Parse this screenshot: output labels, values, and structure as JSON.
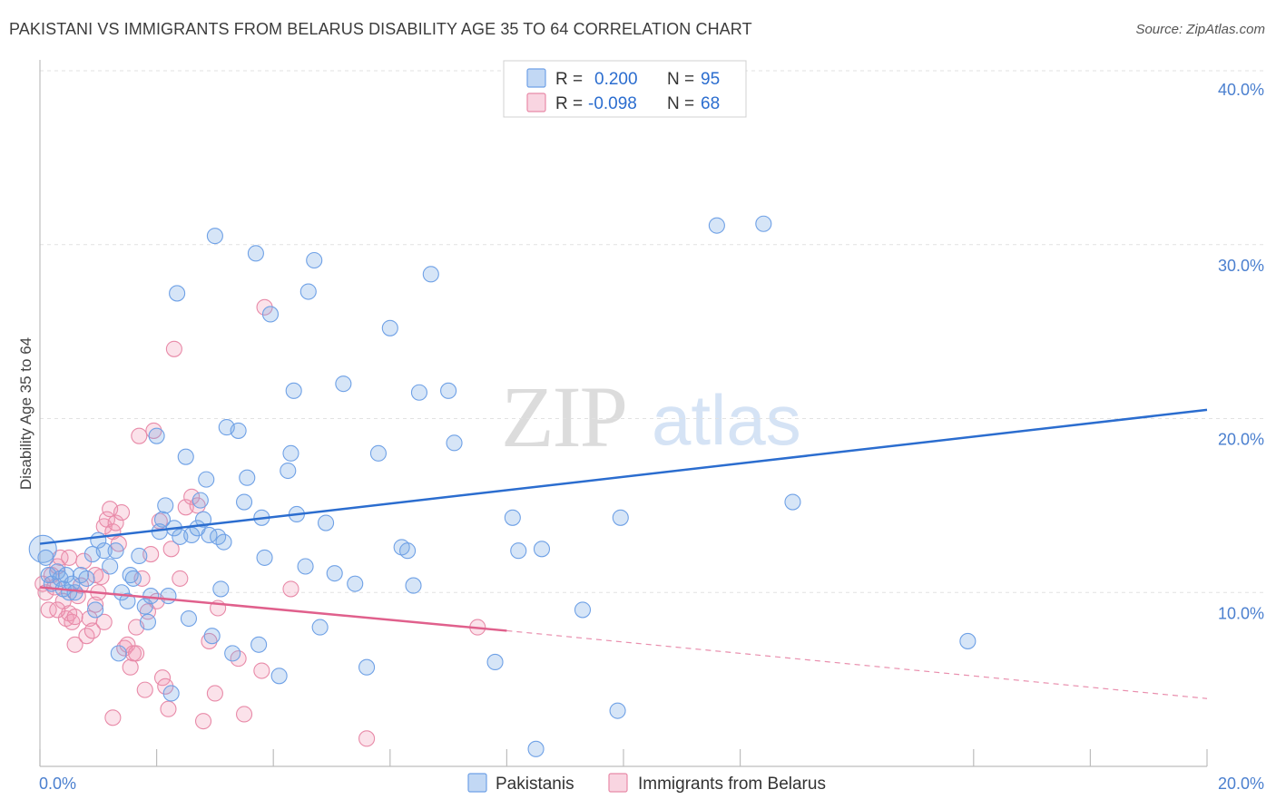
{
  "header": {
    "title": "PAKISTANI VS IMMIGRANTS FROM BELARUS DISABILITY AGE 35 TO 64 CORRELATION CHART",
    "source": "Source: ZipAtlas.com"
  },
  "watermark": {
    "zip": "ZIP",
    "atlas": "atlas"
  },
  "legend": {
    "rows": [
      {
        "r_label": "R =",
        "r_value": "0.200",
        "n_label": "N =",
        "n_value": "95"
      },
      {
        "r_label": "R =",
        "r_value": "-0.098",
        "n_label": "N =",
        "n_value": "68"
      }
    ]
  },
  "bottom_legend": [
    "Pakistanis",
    "Immigrants from Belarus"
  ],
  "colors": {
    "blue": "#6fa1e6",
    "blue_fill": "rgba(120,168,230,0.30)",
    "blue_line": "#2b6dcf",
    "pink": "#e88aa8",
    "pink_fill": "rgba(240,150,180,0.28)",
    "pink_line": "#e0608c",
    "tick_text": "#4a7fcf"
  },
  "chart_data": {
    "type": "scatter",
    "title": "PAKISTANI VS IMMIGRANTS FROM BELARUS DISABILITY AGE 35 TO 64 CORRELATION CHART",
    "xlabel": "",
    "ylabel": "Disability Age 35 to 64",
    "xlim": [
      0,
      20
    ],
    "ylim": [
      0,
      40
    ],
    "x_tick_labels": [
      "0.0%",
      "20.0%"
    ],
    "y_ticks": [
      10,
      20,
      30,
      40
    ],
    "y_tick_labels": [
      "10.0%",
      "20.0%",
      "30.0%",
      "40.0%"
    ],
    "grid": true,
    "legend_position": "top-center",
    "series": [
      {
        "name": "Pakistanis",
        "r": 0.2,
        "n": 95,
        "trend": {
          "x0": 0,
          "y0": 12.8,
          "x1": 20,
          "y1": 20.5,
          "style": "solid"
        },
        "points": [
          [
            0.05,
            12.5
          ],
          [
            0.1,
            12.0
          ],
          [
            0.15,
            11.0
          ],
          [
            0.2,
            10.5
          ],
          [
            0.3,
            11.2
          ],
          [
            0.35,
            10.8
          ],
          [
            0.4,
            10.2
          ],
          [
            0.45,
            11.0
          ],
          [
            0.5,
            10.0
          ],
          [
            0.55,
            10.5
          ],
          [
            0.6,
            10.0
          ],
          [
            0.7,
            11.0
          ],
          [
            0.8,
            10.8
          ],
          [
            0.9,
            12.2
          ],
          [
            1.0,
            13.0
          ],
          [
            1.1,
            12.4
          ],
          [
            1.2,
            11.5
          ],
          [
            1.3,
            12.4
          ],
          [
            1.4,
            10.0
          ],
          [
            1.5,
            9.5
          ],
          [
            1.55,
            11.0
          ],
          [
            1.6,
            10.8
          ],
          [
            1.7,
            12.1
          ],
          [
            1.8,
            9.2
          ],
          [
            1.85,
            8.3
          ],
          [
            1.9,
            9.8
          ],
          [
            2.0,
            19.0
          ],
          [
            2.05,
            13.5
          ],
          [
            2.1,
            14.2
          ],
          [
            2.15,
            15.0
          ],
          [
            2.2,
            9.8
          ],
          [
            2.3,
            13.7
          ],
          [
            2.35,
            27.2
          ],
          [
            2.4,
            13.2
          ],
          [
            2.5,
            17.8
          ],
          [
            2.55,
            8.5
          ],
          [
            2.6,
            13.3
          ],
          [
            2.7,
            13.7
          ],
          [
            2.75,
            15.3
          ],
          [
            2.8,
            14.2
          ],
          [
            2.85,
            16.5
          ],
          [
            2.9,
            13.3
          ],
          [
            3.0,
            30.5
          ],
          [
            3.05,
            13.2
          ],
          [
            3.1,
            10.2
          ],
          [
            3.15,
            12.9
          ],
          [
            3.2,
            19.5
          ],
          [
            3.3,
            6.5
          ],
          [
            3.4,
            19.3
          ],
          [
            3.5,
            15.2
          ],
          [
            3.55,
            16.6
          ],
          [
            3.7,
            29.5
          ],
          [
            3.75,
            7.0
          ],
          [
            3.8,
            14.3
          ],
          [
            3.85,
            12.0
          ],
          [
            3.95,
            26.0
          ],
          [
            4.1,
            5.2
          ],
          [
            4.25,
            17.0
          ],
          [
            4.3,
            18.0
          ],
          [
            4.35,
            21.6
          ],
          [
            4.4,
            14.5
          ],
          [
            4.55,
            11.5
          ],
          [
            4.6,
            27.3
          ],
          [
            4.7,
            29.1
          ],
          [
            4.9,
            14.0
          ],
          [
            5.05,
            11.1
          ],
          [
            5.2,
            22.0
          ],
          [
            5.4,
            10.5
          ],
          [
            5.6,
            5.7
          ],
          [
            5.8,
            18.0
          ],
          [
            6.0,
            25.2
          ],
          [
            6.2,
            12.6
          ],
          [
            6.3,
            12.4
          ],
          [
            6.4,
            10.4
          ],
          [
            6.5,
            21.5
          ],
          [
            6.7,
            28.3
          ],
          [
            7.0,
            21.6
          ],
          [
            7.1,
            18.6
          ],
          [
            7.8,
            6.0
          ],
          [
            8.1,
            14.3
          ],
          [
            8.2,
            12.4
          ],
          [
            8.5,
            1.0
          ],
          [
            8.6,
            12.5
          ],
          [
            9.3,
            9.0
          ],
          [
            9.9,
            3.2
          ],
          [
            9.95,
            14.3
          ],
          [
            11.6,
            31.1
          ],
          [
            12.4,
            31.2
          ],
          [
            12.9,
            15.2
          ],
          [
            15.9,
            7.2
          ],
          [
            2.95,
            7.5
          ],
          [
            4.8,
            8.0
          ],
          [
            1.35,
            6.5
          ],
          [
            2.25,
            4.2
          ],
          [
            0.95,
            9.0
          ]
        ]
      },
      {
        "name": "Immigrants from Belarus",
        "r": -0.098,
        "n": 68,
        "trend": {
          "x0": 0,
          "y0": 10.3,
          "x1": 8.0,
          "y1": 7.8,
          "style": "solid",
          "extension": {
            "x1": 20,
            "y1": 3.9,
            "style": "dashed"
          }
        },
        "points": [
          [
            0.05,
            10.5
          ],
          [
            0.1,
            10.0
          ],
          [
            0.15,
            9.0
          ],
          [
            0.2,
            11.0
          ],
          [
            0.25,
            10.3
          ],
          [
            0.3,
            11.5
          ],
          [
            0.35,
            12.0
          ],
          [
            0.4,
            9.5
          ],
          [
            0.45,
            8.5
          ],
          [
            0.5,
            8.8
          ],
          [
            0.55,
            8.3
          ],
          [
            0.6,
            8.6
          ],
          [
            0.65,
            9.8
          ],
          [
            0.7,
            10.4
          ],
          [
            0.75,
            11.8
          ],
          [
            0.8,
            7.5
          ],
          [
            0.85,
            8.5
          ],
          [
            0.9,
            7.8
          ],
          [
            0.95,
            9.3
          ],
          [
            1.0,
            10.0
          ],
          [
            1.05,
            10.9
          ],
          [
            1.1,
            13.8
          ],
          [
            1.15,
            14.2
          ],
          [
            1.2,
            14.8
          ],
          [
            1.25,
            13.5
          ],
          [
            1.3,
            14.0
          ],
          [
            1.35,
            12.8
          ],
          [
            1.4,
            14.6
          ],
          [
            1.45,
            6.8
          ],
          [
            1.5,
            7.0
          ],
          [
            1.55,
            5.7
          ],
          [
            1.6,
            6.5
          ],
          [
            1.65,
            8.0
          ],
          [
            1.7,
            19.0
          ],
          [
            1.75,
            10.8
          ],
          [
            1.8,
            4.4
          ],
          [
            1.85,
            8.9
          ],
          [
            1.9,
            12.2
          ],
          [
            1.95,
            19.3
          ],
          [
            2.0,
            9.5
          ],
          [
            2.05,
            14.1
          ],
          [
            2.1,
            5.1
          ],
          [
            2.15,
            4.6
          ],
          [
            2.2,
            3.3
          ],
          [
            2.25,
            12.5
          ],
          [
            2.3,
            24.0
          ],
          [
            2.4,
            10.8
          ],
          [
            2.5,
            14.9
          ],
          [
            2.6,
            15.5
          ],
          [
            2.7,
            15.0
          ],
          [
            2.8,
            2.6
          ],
          [
            2.9,
            7.2
          ],
          [
            3.0,
            4.2
          ],
          [
            3.05,
            9.1
          ],
          [
            3.4,
            6.2
          ],
          [
            3.5,
            3.0
          ],
          [
            3.8,
            5.5
          ],
          [
            3.85,
            26.4
          ],
          [
            4.3,
            10.2
          ],
          [
            5.6,
            1.6
          ],
          [
            7.5,
            8.0
          ],
          [
            0.6,
            7.0
          ],
          [
            1.25,
            2.8
          ],
          [
            0.95,
            11.0
          ],
          [
            1.65,
            6.5
          ],
          [
            0.3,
            9.0
          ],
          [
            0.5,
            12.0
          ],
          [
            1.1,
            8.3
          ]
        ]
      }
    ]
  }
}
